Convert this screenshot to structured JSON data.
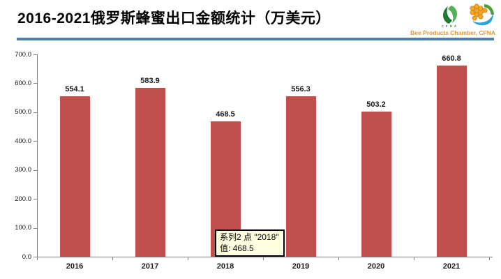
{
  "header": {
    "title": "2016-2021俄罗斯蜂蜜出口金额统计（万美元）",
    "logo_caption": "Bee Products Chamber, CFNA"
  },
  "colors": {
    "bar": "#C0504D",
    "divider": "#4E80A8",
    "caption": "#DB9A2E",
    "tooltip_bg": "#FFFFE1",
    "axis": "#808080"
  },
  "chart_data": {
    "type": "bar",
    "title": "2016-2021俄罗斯蜂蜜出口金额统计（万美元）",
    "series_name": "系列2",
    "categories": [
      "2016",
      "2017",
      "2018",
      "2019",
      "2020",
      "2021"
    ],
    "values": [
      554.1,
      583.9,
      468.5,
      556.3,
      503.2,
      660.8
    ],
    "data_labels": [
      "554.1",
      "583.9",
      "468.5",
      "556.3",
      "503.2",
      "660.8"
    ],
    "xlabel": "",
    "ylabel": "",
    "ylim": [
      0,
      700
    ],
    "ytick_step": 100,
    "y_ticks": [
      "0.0",
      "100.0",
      "200.0",
      "300.0",
      "400.0",
      "500.0",
      "600.0",
      "700.0"
    ],
    "grid": false,
    "legend": false
  },
  "tooltip": {
    "line1": "系列2 点 \"2018\"",
    "line2": "值: 468.5"
  }
}
